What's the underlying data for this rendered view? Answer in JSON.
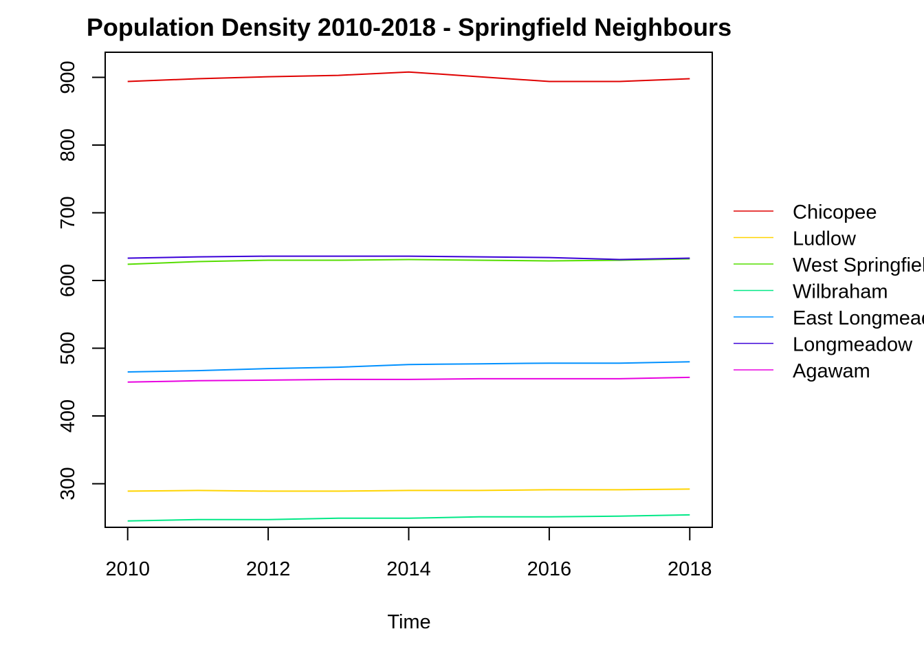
{
  "chart_data": {
    "type": "line",
    "title": "Population Density 2010-2018 - Springfield Neighbours",
    "xlabel": "Time",
    "ylabel": "",
    "x": [
      2010,
      2011,
      2012,
      2013,
      2014,
      2015,
      2016,
      2017,
      2018
    ],
    "xticks": [
      "2010",
      "2012",
      "2014",
      "2016",
      "2018"
    ],
    "yticks": [
      "300",
      "400",
      "500",
      "600",
      "700",
      "800",
      "900"
    ],
    "xlim": [
      2009.68,
      2018.32
    ],
    "ylim": [
      235.6,
      937.1
    ],
    "grid": false,
    "legend_position": "right",
    "series": [
      {
        "name": "Chicopee",
        "color": "#DF0000",
        "values": [
          894,
          898,
          901,
          903,
          908,
          901,
          894,
          894,
          898
        ]
      },
      {
        "name": "Ludlow",
        "color": "#FFD400",
        "values": [
          289,
          290,
          289,
          289,
          290,
          290,
          291,
          291,
          292
        ]
      },
      {
        "name": "West Springfield",
        "color": "#55DD00",
        "values": [
          624,
          628,
          630,
          630,
          631,
          630,
          629,
          630,
          632
        ]
      },
      {
        "name": "Wilbraham",
        "color": "#00E886",
        "values": [
          245,
          247,
          247,
          249,
          249,
          251,
          251,
          252,
          254
        ]
      },
      {
        "name": "East Longmeadow",
        "color": "#0090FF",
        "values": [
          465,
          467,
          470,
          472,
          476,
          477,
          478,
          478,
          480
        ]
      },
      {
        "name": "Longmeadow",
        "color": "#3A00D8",
        "values": [
          633,
          635,
          636,
          636,
          636,
          635,
          634,
          631,
          633
        ]
      },
      {
        "name": "Agawam",
        "color": "#E800E0",
        "values": [
          450,
          452,
          453,
          454,
          454,
          455,
          455,
          455,
          457
        ]
      }
    ]
  }
}
